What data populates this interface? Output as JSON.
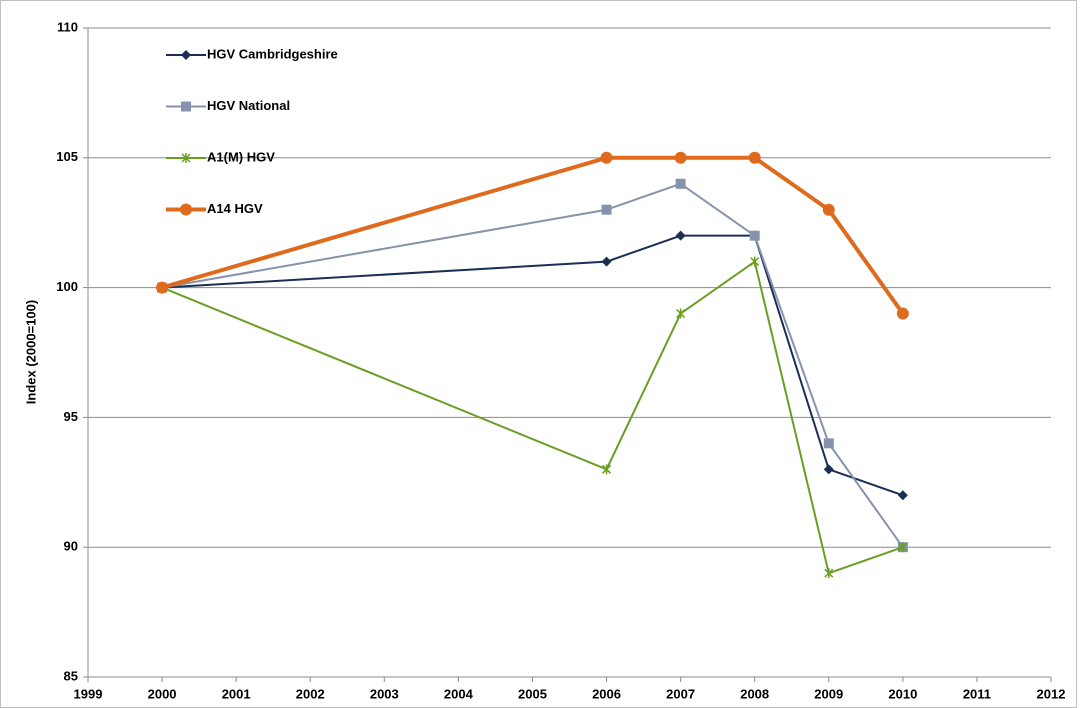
{
  "chart_data": {
    "type": "line",
    "y_label": "Index (2000=100)",
    "x": [
      2000,
      2006,
      2007,
      2008,
      2009,
      2010
    ],
    "xlim": [
      1999,
      2012
    ],
    "xticks": [
      1999,
      2000,
      2001,
      2002,
      2003,
      2004,
      2005,
      2006,
      2007,
      2008,
      2009,
      2010,
      2011,
      2012
    ],
    "ylim": [
      85,
      110
    ],
    "yticks": [
      85,
      90,
      95,
      100,
      105,
      110
    ],
    "grid": true,
    "legend": "upper left",
    "series": [
      {
        "name": "HGV Cambridgeshire",
        "color": "#1b2f55",
        "marker": "diamond",
        "width": 2,
        "values": [
          100,
          101,
          102,
          102,
          93,
          92
        ]
      },
      {
        "name": "HGV National",
        "color": "#8792ad",
        "marker": "square",
        "width": 2,
        "values": [
          100,
          103,
          104,
          102,
          94,
          90
        ]
      },
      {
        "name": "A1(M) HGV",
        "color": "#6a9e23",
        "marker": "star",
        "width": 2,
        "values": [
          100,
          93,
          99,
          101,
          89,
          90
        ]
      },
      {
        "name": "A14 HGV",
        "color": "#e06a1c",
        "marker": "circle",
        "width": 4,
        "values": [
          100,
          105,
          105,
          105,
          103,
          99
        ]
      }
    ]
  }
}
